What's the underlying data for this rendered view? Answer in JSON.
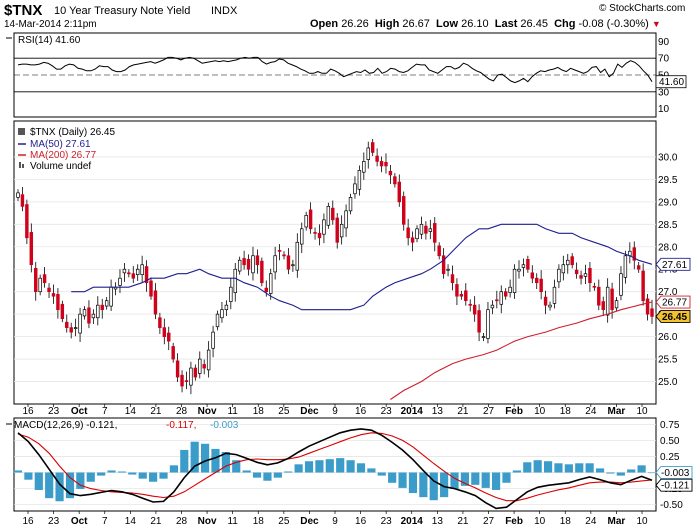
{
  "header": {
    "symbol": "$TNX",
    "name": "10 Year Treasury Note Yield",
    "exchange": "INDX",
    "date": "14-Mar-2014 2:11pm",
    "watermark": "© StockCharts.com",
    "open_label": "Open",
    "open": "26.26",
    "high_label": "High",
    "high": "26.67",
    "low_label": "Low",
    "low": "26.10",
    "last_label": "Last",
    "last": "26.45",
    "chg_label": "Chg",
    "chg": "-0.08 (-0.30%)"
  },
  "colors": {
    "up": "#ffffff",
    "down": "#d0021b",
    "ma50": "#1f1f8f",
    "ma200": "#cc1f2f",
    "macd_hist": "#3b9cc9",
    "macd_line": "#000000",
    "signal_line": "#d80000",
    "last_badge": "#f2c230"
  },
  "chart_data": [
    {
      "type": "line",
      "title": "RSI(14) 41.60",
      "series": [
        {
          "name": "RSI(14) 41.60",
          "values": [
            62,
            63,
            63,
            62,
            62,
            63,
            65,
            64,
            61,
            57,
            57,
            61,
            63,
            62,
            58,
            57,
            55,
            55,
            57,
            61,
            60,
            60,
            56,
            54,
            54,
            56,
            60,
            62,
            63,
            64,
            65,
            66,
            64,
            66,
            68,
            71,
            71,
            70,
            68,
            70,
            71,
            70,
            67,
            64,
            65,
            66,
            67,
            66,
            67,
            66,
            67,
            68,
            70,
            71,
            70,
            71,
            71,
            66,
            63,
            65,
            66,
            69,
            68,
            64,
            62,
            60,
            57,
            55,
            52,
            52,
            54,
            52,
            52,
            57,
            55,
            52,
            48,
            50,
            52,
            54,
            53,
            56,
            52,
            53,
            58,
            52,
            54,
            58,
            57,
            54,
            53,
            55,
            59,
            63,
            62,
            62,
            56,
            54,
            52,
            56,
            60,
            60,
            57,
            59,
            64,
            62,
            58,
            55,
            53,
            49,
            45,
            43,
            50,
            51,
            47,
            43,
            41,
            43,
            46,
            42,
            48,
            52,
            55,
            54,
            56,
            57,
            59,
            56,
            54,
            58,
            56,
            54,
            52,
            54,
            59,
            60,
            53,
            57,
            48,
            52,
            63,
            59,
            64,
            67,
            65,
            61,
            55,
            50,
            42
          ]
        }
      ],
      "ylim": [
        0,
        100
      ],
      "yticks": [
        10,
        30,
        50,
        70,
        90
      ],
      "reference_lines": [
        30,
        50,
        70
      ],
      "last_label": "41.60"
    },
    {
      "type": "candlestick",
      "title": "$TNX (Daily) 26.45",
      "legend": [
        "$TNX (Daily) 26.45",
        "MA(50) 27.61",
        "MA(200) 26.77",
        "Volume undef"
      ],
      "ylim": [
        24.5,
        30.8
      ],
      "yticks": [
        "25.0",
        "25.5",
        "26.0",
        "26.5",
        "27.0",
        "27.5",
        "28.0",
        "28.5",
        "29.0",
        "29.5",
        "30.0"
      ],
      "x_labels": [
        "16",
        "23",
        "Oct",
        "7",
        "14",
        "21",
        "28",
        "Nov",
        "11",
        "18",
        "25",
        "Dec",
        "9",
        "16",
        "23",
        "2014",
        "13",
        "21",
        "27",
        "Feb",
        "10",
        "18",
        "24",
        "Mar",
        "10"
      ],
      "close": [
        29.2,
        28.9,
        28.2,
        27.6,
        27.0,
        27.3,
        27.2,
        27.0,
        26.9,
        26.6,
        26.4,
        26.2,
        26.1,
        26.2,
        26.5,
        26.6,
        26.3,
        26.5,
        26.7,
        26.6,
        26.8,
        27.1,
        27.1,
        27.3,
        27.5,
        27.4,
        27.3,
        27.5,
        27.6,
        27.2,
        26.9,
        26.5,
        26.2,
        26.0,
        25.9,
        25.5,
        25.1,
        24.9,
        25.0,
        25.3,
        25.1,
        25.5,
        25.3,
        25.7,
        26.1,
        26.5,
        26.6,
        26.7,
        27.1,
        27.5,
        27.7,
        27.6,
        27.5,
        27.8,
        27.6,
        27.2,
        27.0,
        27.4,
        27.8,
        27.9,
        27.8,
        27.5,
        27.6,
        28.1,
        28.4,
        28.7,
        28.4,
        28.3,
        28.2,
        28.6,
        28.9,
        28.6,
        28.1,
        28.5,
        28.8,
        29.1,
        29.4,
        29.7,
        29.9,
        30.2,
        30.1,
        29.9,
        29.8,
        29.8,
        29.6,
        29.4,
        29.0,
        28.5,
        28.2,
        28.1,
        28.4,
        28.5,
        28.3,
        28.4,
        28.1,
        27.8,
        27.4,
        27.5,
        27.2,
        26.9,
        26.9,
        26.8,
        26.7,
        26.5,
        26.1,
        26.0,
        26.6,
        26.7,
        26.8,
        27.0,
        26.9,
        27.1,
        27.5,
        27.5,
        27.6,
        27.5,
        27.3,
        27.2,
        27.0,
        26.7,
        26.7,
        27.1,
        27.5,
        27.6,
        27.7,
        27.6,
        27.4,
        27.3,
        27.4,
        27.2,
        27.1,
        26.7,
        26.6,
        27.1,
        26.6,
        26.8,
        27.4,
        27.8,
        27.9,
        27.7,
        27.5,
        26.8,
        26.5,
        26.45
      ],
      "ma50": [
        27.0,
        27.0,
        27.1,
        27.1,
        27.1,
        27.1,
        27.2,
        27.3,
        27.3,
        27.4,
        27.4,
        27.5,
        27.4,
        27.3,
        27.3,
        27.2,
        27.1,
        26.9,
        26.8,
        26.7,
        26.6,
        26.6,
        26.6,
        26.6,
        26.6,
        26.7,
        26.9,
        27.1,
        27.2,
        27.3,
        27.4,
        27.5,
        27.7,
        27.9,
        28.2,
        28.4,
        28.4,
        28.5,
        28.5,
        28.5,
        28.5,
        28.4,
        28.3,
        28.3,
        28.2,
        28.1,
        28.0,
        27.9,
        27.8,
        27.7,
        27.61
      ],
      "ma200": [
        24.6,
        24.8,
        25.0,
        25.2,
        25.4,
        25.5,
        25.6,
        25.7,
        25.9,
        26.0,
        26.1,
        26.2,
        26.3,
        26.4,
        26.5,
        26.6,
        26.7,
        26.77
      ],
      "last": 26.45,
      "labels": {
        "ma50": "27.61",
        "ma200": "26.77",
        "last": "26.45"
      }
    },
    {
      "type": "line+bar",
      "title": "MACD(12,26,9) -0.121, -0.117, -0.003",
      "series": [
        {
          "name": "MACD(12,26,9)",
          "value": "-0.121",
          "values": [
            0.62,
            0.48,
            0.28,
            0.05,
            -0.18,
            -0.33,
            -0.36,
            -0.34,
            -0.31,
            -0.28,
            -0.3,
            -0.34,
            -0.4,
            -0.46,
            -0.45,
            -0.3,
            -0.08,
            0.1,
            0.18,
            0.23,
            0.3,
            0.28,
            0.22,
            0.16,
            0.12,
            0.15,
            0.22,
            0.32,
            0.41,
            0.48,
            0.55,
            0.62,
            0.66,
            0.68,
            0.66,
            0.58,
            0.47,
            0.35,
            0.2,
            0.03,
            -0.13,
            -0.22,
            -0.25,
            -0.3,
            -0.36,
            -0.47,
            -0.56,
            -0.54,
            -0.42,
            -0.3,
            -0.23,
            -0.2,
            -0.18,
            -0.16,
            -0.11,
            -0.07,
            -0.11,
            -0.16,
            -0.19,
            -0.12,
            -0.06,
            -0.12
          ]
        },
        {
          "name": "Signal",
          "value": "-0.117",
          "values": [
            0.6,
            0.55,
            0.45,
            0.3,
            0.1,
            -0.08,
            -0.2,
            -0.25,
            -0.28,
            -0.3,
            -0.31,
            -0.32,
            -0.34,
            -0.37,
            -0.39,
            -0.37,
            -0.3,
            -0.2,
            -0.1,
            0.0,
            0.1,
            0.16,
            0.2,
            0.21,
            0.2,
            0.2,
            0.21,
            0.24,
            0.3,
            0.36,
            0.42,
            0.48,
            0.54,
            0.59,
            0.62,
            0.61,
            0.57,
            0.5,
            0.4,
            0.27,
            0.14,
            0.02,
            -0.09,
            -0.17,
            -0.24,
            -0.32,
            -0.39,
            -0.44,
            -0.44,
            -0.4,
            -0.35,
            -0.31,
            -0.27,
            -0.24,
            -0.2,
            -0.16,
            -0.15,
            -0.15,
            -0.16,
            -0.15,
            -0.13,
            -0.117
          ]
        },
        {
          "name": "Histogram",
          "value": "-0.003"
        }
      ],
      "ylim": [
        -0.6,
        0.85
      ],
      "yticks": [
        "0.75",
        "0.50",
        "0.25",
        "0.00",
        "-0.25",
        "-0.50"
      ],
      "x_labels": [
        "16",
        "23",
        "Oct",
        "7",
        "14",
        "21",
        "28",
        "Nov",
        "11",
        "18",
        "25",
        "Dec",
        "9",
        "16",
        "23",
        "2014",
        "13",
        "21",
        "27",
        "Feb",
        "10",
        "18",
        "24",
        "Mar",
        "10"
      ],
      "labels": {
        "hist": "-0.003",
        "macd": "-0.121"
      }
    }
  ]
}
